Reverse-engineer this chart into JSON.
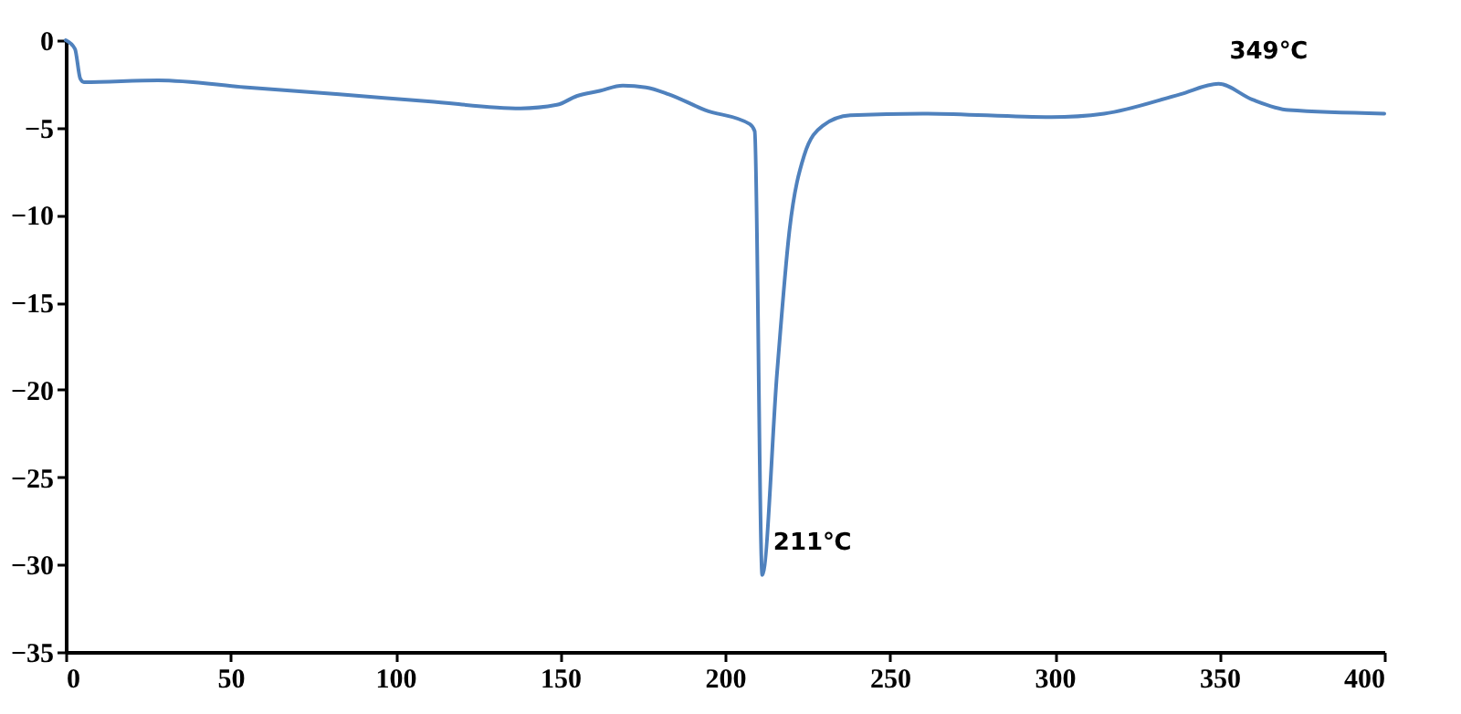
{
  "chart_data": {
    "type": "line",
    "x": [
      0,
      2.8,
      4.4,
      5.5,
      28,
      55,
      83,
      110,
      138,
      149,
      155,
      162,
      169,
      176,
      183,
      194,
      207.5,
      209,
      211.3,
      215.8,
      219.6,
      224,
      229.6,
      238,
      260,
      299,
      315,
      338,
      349.7,
      360,
      371,
      400
    ],
    "series": [
      {
        "color": "#4f81bd",
        "values": [
          0,
          -0.5,
          -2.2,
          -2.4,
          -2.3,
          -2.7,
          -3.1,
          -3.5,
          -3.9,
          -3.7,
          -3.2,
          -2.9,
          -2.6,
          -2.7,
          -3.1,
          -4.0,
          -4.8,
          -5.2,
          -30.6,
          -19,
          -10.8,
          -6.6,
          -4.9,
          -4.3,
          -4.2,
          -4.4,
          -4.2,
          -3.1,
          -2.5,
          -3.4,
          -4.0,
          -4.2
        ]
      }
    ],
    "xlim": [
      0,
      400
    ],
    "xticks": [
      0,
      50,
      100,
      150,
      200,
      250,
      300,
      350,
      400
    ],
    "ylim": [
      -35,
      0
    ],
    "yticks": [
      -35,
      -30,
      -25,
      -20,
      -15,
      -10,
      -5,
      0
    ],
    "annotations": [
      {
        "text": "211℃",
        "x": 211.3,
        "y": -30.6
      },
      {
        "text": "349℃",
        "x": 349.7,
        "y": -2.5
      }
    ],
    "grid": false,
    "marker": "none",
    "line_style": "solid"
  }
}
